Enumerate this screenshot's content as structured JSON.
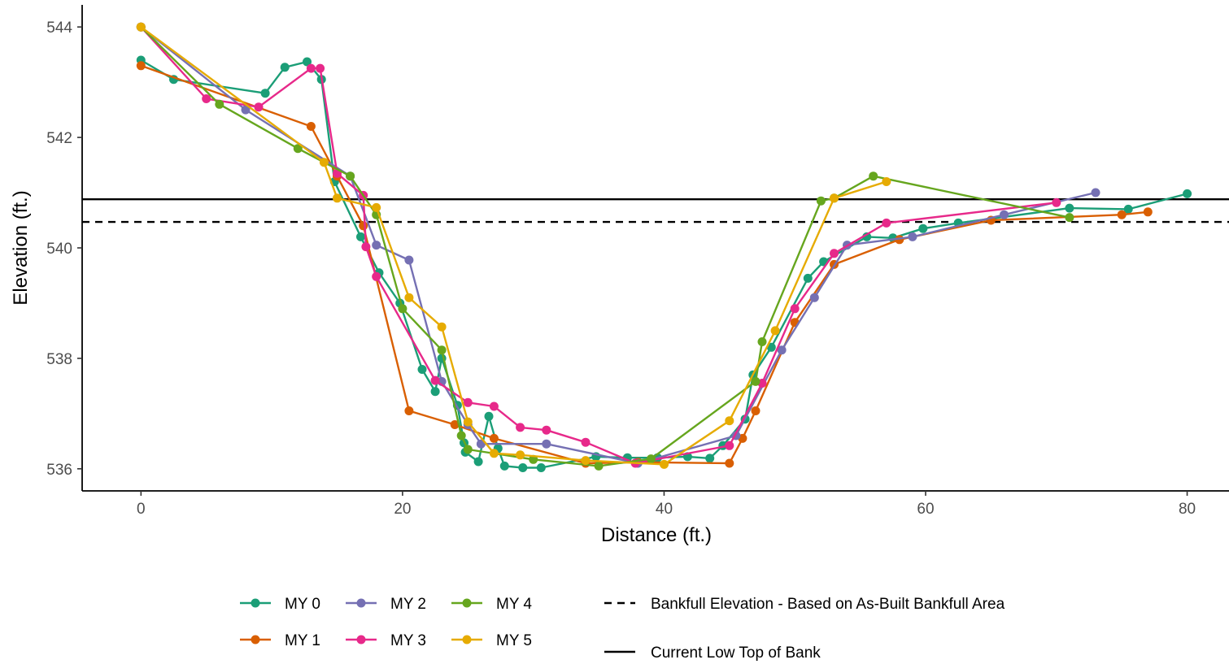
{
  "chart_data": {
    "type": "line",
    "title": "",
    "xlabel": "Distance (ft.)",
    "ylabel": "Elevation (ft.)",
    "xlim": [
      -4.5,
      83.2
    ],
    "ylim": [
      535.6,
      544.4
    ],
    "x_ticks": [
      0,
      20,
      40,
      60,
      80
    ],
    "y_ticks": [
      536,
      538,
      540,
      542,
      544
    ],
    "grid": false,
    "legend_position": "bottom",
    "colors": {
      "MY 0": "#1b9e77",
      "MY 1": "#d95f02",
      "MY 2": "#7570b3",
      "MY 3": "#e7298a",
      "MY 4": "#66a61e",
      "MY 5": "#e6ab02"
    },
    "series": [
      {
        "name": "MY 0",
        "points": [
          [
            0,
            543.4
          ],
          [
            2.5,
            543.05
          ],
          [
            9.5,
            542.8
          ],
          [
            11,
            543.27
          ],
          [
            12.7,
            543.37
          ],
          [
            13.8,
            543.05
          ],
          [
            14.8,
            541.2
          ],
          [
            16.8,
            540.2
          ],
          [
            18.2,
            539.55
          ],
          [
            19.8,
            539.0
          ],
          [
            21.5,
            537.8
          ],
          [
            22.5,
            537.4
          ],
          [
            23,
            538.0
          ],
          [
            24.2,
            537.15
          ],
          [
            24.7,
            536.47
          ],
          [
            24.8,
            536.3
          ],
          [
            25.8,
            536.13
          ],
          [
            26.6,
            536.95
          ],
          [
            27.3,
            536.37
          ],
          [
            27.8,
            536.05
          ],
          [
            29.2,
            536.02
          ],
          [
            30.6,
            536.02
          ],
          [
            34.8,
            536.22
          ],
          [
            37.2,
            536.2
          ],
          [
            39.5,
            536.2
          ],
          [
            41.8,
            536.22
          ],
          [
            43.5,
            536.19
          ],
          [
            44.5,
            536.42
          ],
          [
            46.2,
            536.9
          ],
          [
            46.8,
            537.7
          ],
          [
            48.2,
            538.2
          ],
          [
            51,
            539.45
          ],
          [
            52.2,
            539.75
          ],
          [
            55.5,
            540.2
          ],
          [
            57.5,
            540.18
          ],
          [
            59.8,
            540.35
          ],
          [
            62.5,
            540.45
          ],
          [
            71,
            540.72
          ],
          [
            75.5,
            540.7
          ],
          [
            80,
            540.98
          ]
        ]
      },
      {
        "name": "MY 1",
        "points": [
          [
            0,
            543.3
          ],
          [
            13,
            542.2
          ],
          [
            15,
            541.3
          ],
          [
            17,
            540.4
          ],
          [
            20.5,
            537.05
          ],
          [
            24,
            536.8
          ],
          [
            27,
            536.55
          ],
          [
            34,
            536.1
          ],
          [
            38,
            536.12
          ],
          [
            45,
            536.1
          ],
          [
            46,
            536.55
          ],
          [
            47,
            537.05
          ],
          [
            50,
            538.65
          ],
          [
            53,
            539.7
          ],
          [
            58,
            540.15
          ],
          [
            65,
            540.5
          ],
          [
            75,
            540.6
          ],
          [
            77,
            540.65
          ]
        ]
      },
      {
        "name": "MY 2",
        "points": [
          [
            0,
            544.0
          ],
          [
            8,
            542.5
          ],
          [
            16,
            541.3
          ],
          [
            18,
            540.05
          ],
          [
            20.5,
            539.78
          ],
          [
            23,
            537.58
          ],
          [
            25,
            536.8
          ],
          [
            26,
            536.45
          ],
          [
            31,
            536.45
          ],
          [
            38,
            536.1
          ],
          [
            45.5,
            536.6
          ],
          [
            49,
            538.15
          ],
          [
            51.5,
            539.1
          ],
          [
            54,
            540.05
          ],
          [
            59,
            540.2
          ],
          [
            66,
            540.6
          ],
          [
            73,
            541.0
          ]
        ]
      },
      {
        "name": "MY 3",
        "points": [
          [
            0,
            544.0
          ],
          [
            5,
            542.7
          ],
          [
            9,
            542.55
          ],
          [
            13,
            543.25
          ],
          [
            13.7,
            543.25
          ],
          [
            15,
            541.35
          ],
          [
            17,
            540.95
          ],
          [
            17.2,
            540.02
          ],
          [
            18,
            539.48
          ],
          [
            22.5,
            537.6
          ],
          [
            25,
            537.2
          ],
          [
            27,
            537.13
          ],
          [
            29,
            536.75
          ],
          [
            31,
            536.7
          ],
          [
            34,
            536.48
          ],
          [
            37.8,
            536.1
          ],
          [
            45,
            536.42
          ],
          [
            47.5,
            537.55
          ],
          [
            50,
            538.9
          ],
          [
            53,
            539.9
          ],
          [
            57,
            540.45
          ],
          [
            70,
            540.82
          ]
        ]
      },
      {
        "name": "MY 4",
        "points": [
          [
            0,
            544.0
          ],
          [
            6,
            542.6
          ],
          [
            12,
            541.8
          ],
          [
            16,
            541.3
          ],
          [
            18,
            540.6
          ],
          [
            20,
            538.9
          ],
          [
            23,
            538.15
          ],
          [
            24.5,
            536.6
          ],
          [
            25,
            536.35
          ],
          [
            30,
            536.17
          ],
          [
            35,
            536.05
          ],
          [
            39,
            536.18
          ],
          [
            47,
            537.58
          ],
          [
            47.5,
            538.3
          ],
          [
            52,
            540.85
          ],
          [
            53,
            540.9
          ],
          [
            56,
            541.3
          ],
          [
            71,
            540.55
          ]
        ]
      },
      {
        "name": "MY 5",
        "points": [
          [
            0,
            544.0
          ],
          [
            14,
            541.55
          ],
          [
            15,
            540.9
          ],
          [
            18,
            540.73
          ],
          [
            20.5,
            539.1
          ],
          [
            23,
            538.57
          ],
          [
            25,
            536.85
          ],
          [
            27,
            536.28
          ],
          [
            29,
            536.25
          ],
          [
            34,
            536.15
          ],
          [
            40,
            536.08
          ],
          [
            45,
            536.87
          ],
          [
            48.5,
            538.5
          ],
          [
            53,
            540.9
          ],
          [
            57,
            541.2
          ]
        ]
      }
    ],
    "reference_lines": [
      {
        "name": "Bankfull Elevation - Based on As-Built Bankfull Area",
        "y": 540.47,
        "style": "dashed"
      },
      {
        "name": "Current Low Top of Bank",
        "y": 540.88,
        "style": "solid"
      }
    ]
  }
}
